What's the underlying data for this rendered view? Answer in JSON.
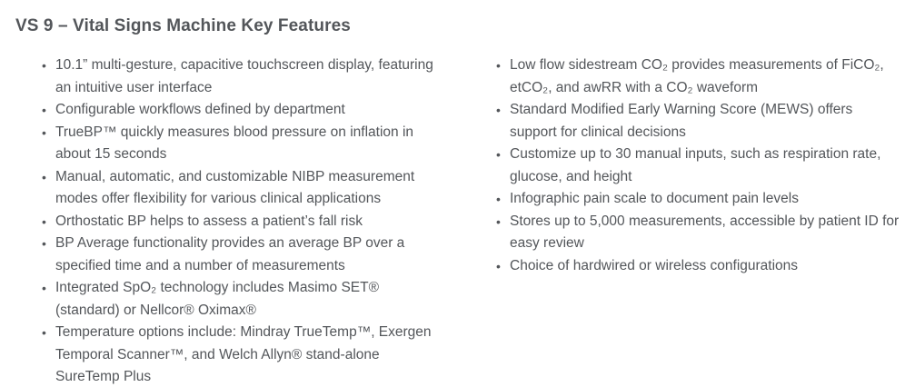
{
  "title": "VS 9 – Vital Signs Machine Key Features",
  "colors": {
    "text": "#53565a",
    "background": "#ffffff"
  },
  "columns": {
    "left": [
      "10.1” multi-gesture, capacitive touchscreen display, featuring an intuitive user interface",
      "Configurable workflows defined by department",
      "TrueBP™ quickly measures blood pressure on inflation in about 15 seconds",
      "Manual, automatic, and customizable NIBP measurement modes offer flexibility for various clinical applications",
      "Orthostatic BP helps to assess a patient’s fall risk",
      "BP Average functionality provides an average BP over a specified time and a number of measurements",
      "Integrated SpO₂ technology includes Masimo SET® (standard) or Nellcor® Oximax®",
      "Temperature options include: Mindray TrueTemp™, Exergen Temporal Scanner™, and Welch Allyn® stand-alone SureTemp Plus"
    ],
    "right": [
      "Low flow sidestream CO₂ provides measurements of FiCO₂, etCO₂, and awRR with a CO₂ waveform",
      "Standard Modified Early Warning Score (MEWS) offers support for clinical decisions",
      "Customize up to 30 manual inputs, such as respiration rate, glucose, and height",
      "Infographic pain scale to document pain levels",
      "Stores up to 5,000 measurements, accessible by patient ID for easy review",
      "Choice of hardwired or wireless configurations"
    ]
  }
}
